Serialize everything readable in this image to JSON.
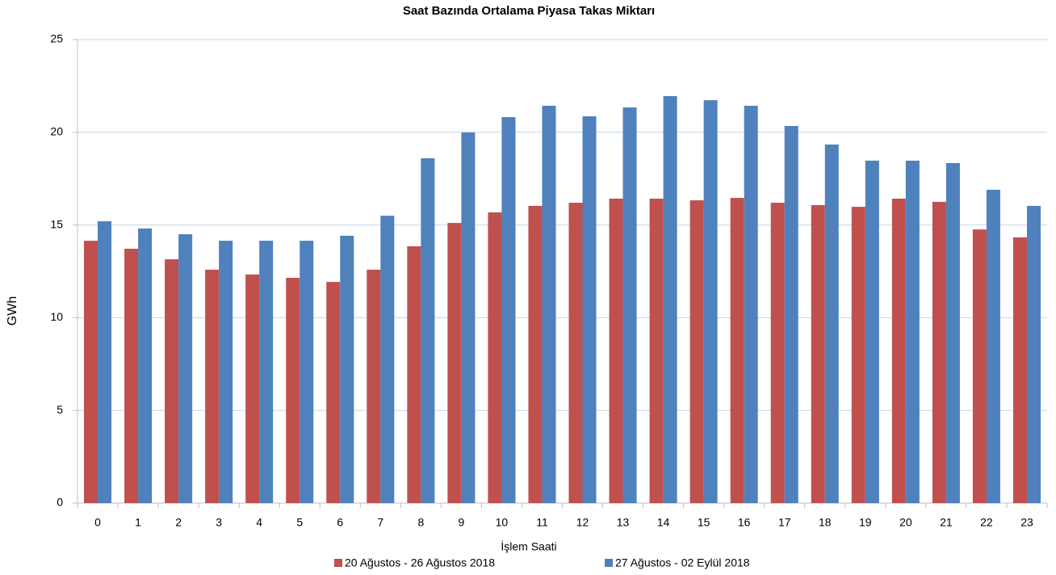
{
  "chart_data": {
    "type": "bar",
    "title": "Saat Bazında Ortalama Piyasa Takas Miktarı",
    "x_label": "İşlem Saati",
    "y_label": "GWh",
    "categories": [
      "0",
      "1",
      "2",
      "3",
      "4",
      "5",
      "6",
      "7",
      "8",
      "9",
      "10",
      "11",
      "12",
      "13",
      "14",
      "15",
      "16",
      "17",
      "18",
      "19",
      "20",
      "21",
      "22",
      "23"
    ],
    "series": [
      {
        "name": "20 Ağustos - 26 Ağustos 2018",
        "color": "#c0504d",
        "values": [
          14.15,
          13.72,
          13.15,
          12.59,
          12.33,
          12.15,
          11.93,
          12.59,
          13.85,
          15.11,
          15.68,
          16.03,
          16.2,
          16.42,
          16.42,
          16.33,
          16.46,
          16.2,
          16.07,
          15.98,
          16.42,
          16.25,
          14.76,
          14.33
        ]
      },
      {
        "name": "27 Ağustos - 02 Eylül 2018",
        "color": "#4f81bd",
        "values": [
          15.2,
          14.81,
          14.5,
          14.15,
          14.15,
          14.15,
          14.42,
          15.5,
          18.6,
          19.99,
          20.82,
          21.43,
          20.86,
          21.34,
          21.95,
          21.73,
          21.43,
          20.34,
          19.34,
          18.47,
          18.47,
          18.34,
          16.9,
          16.03
        ]
      }
    ],
    "ylim": [
      0,
      25
    ],
    "yticks": [
      0,
      5,
      10,
      15,
      20,
      25
    ],
    "grid": true,
    "legend": "bottom"
  }
}
